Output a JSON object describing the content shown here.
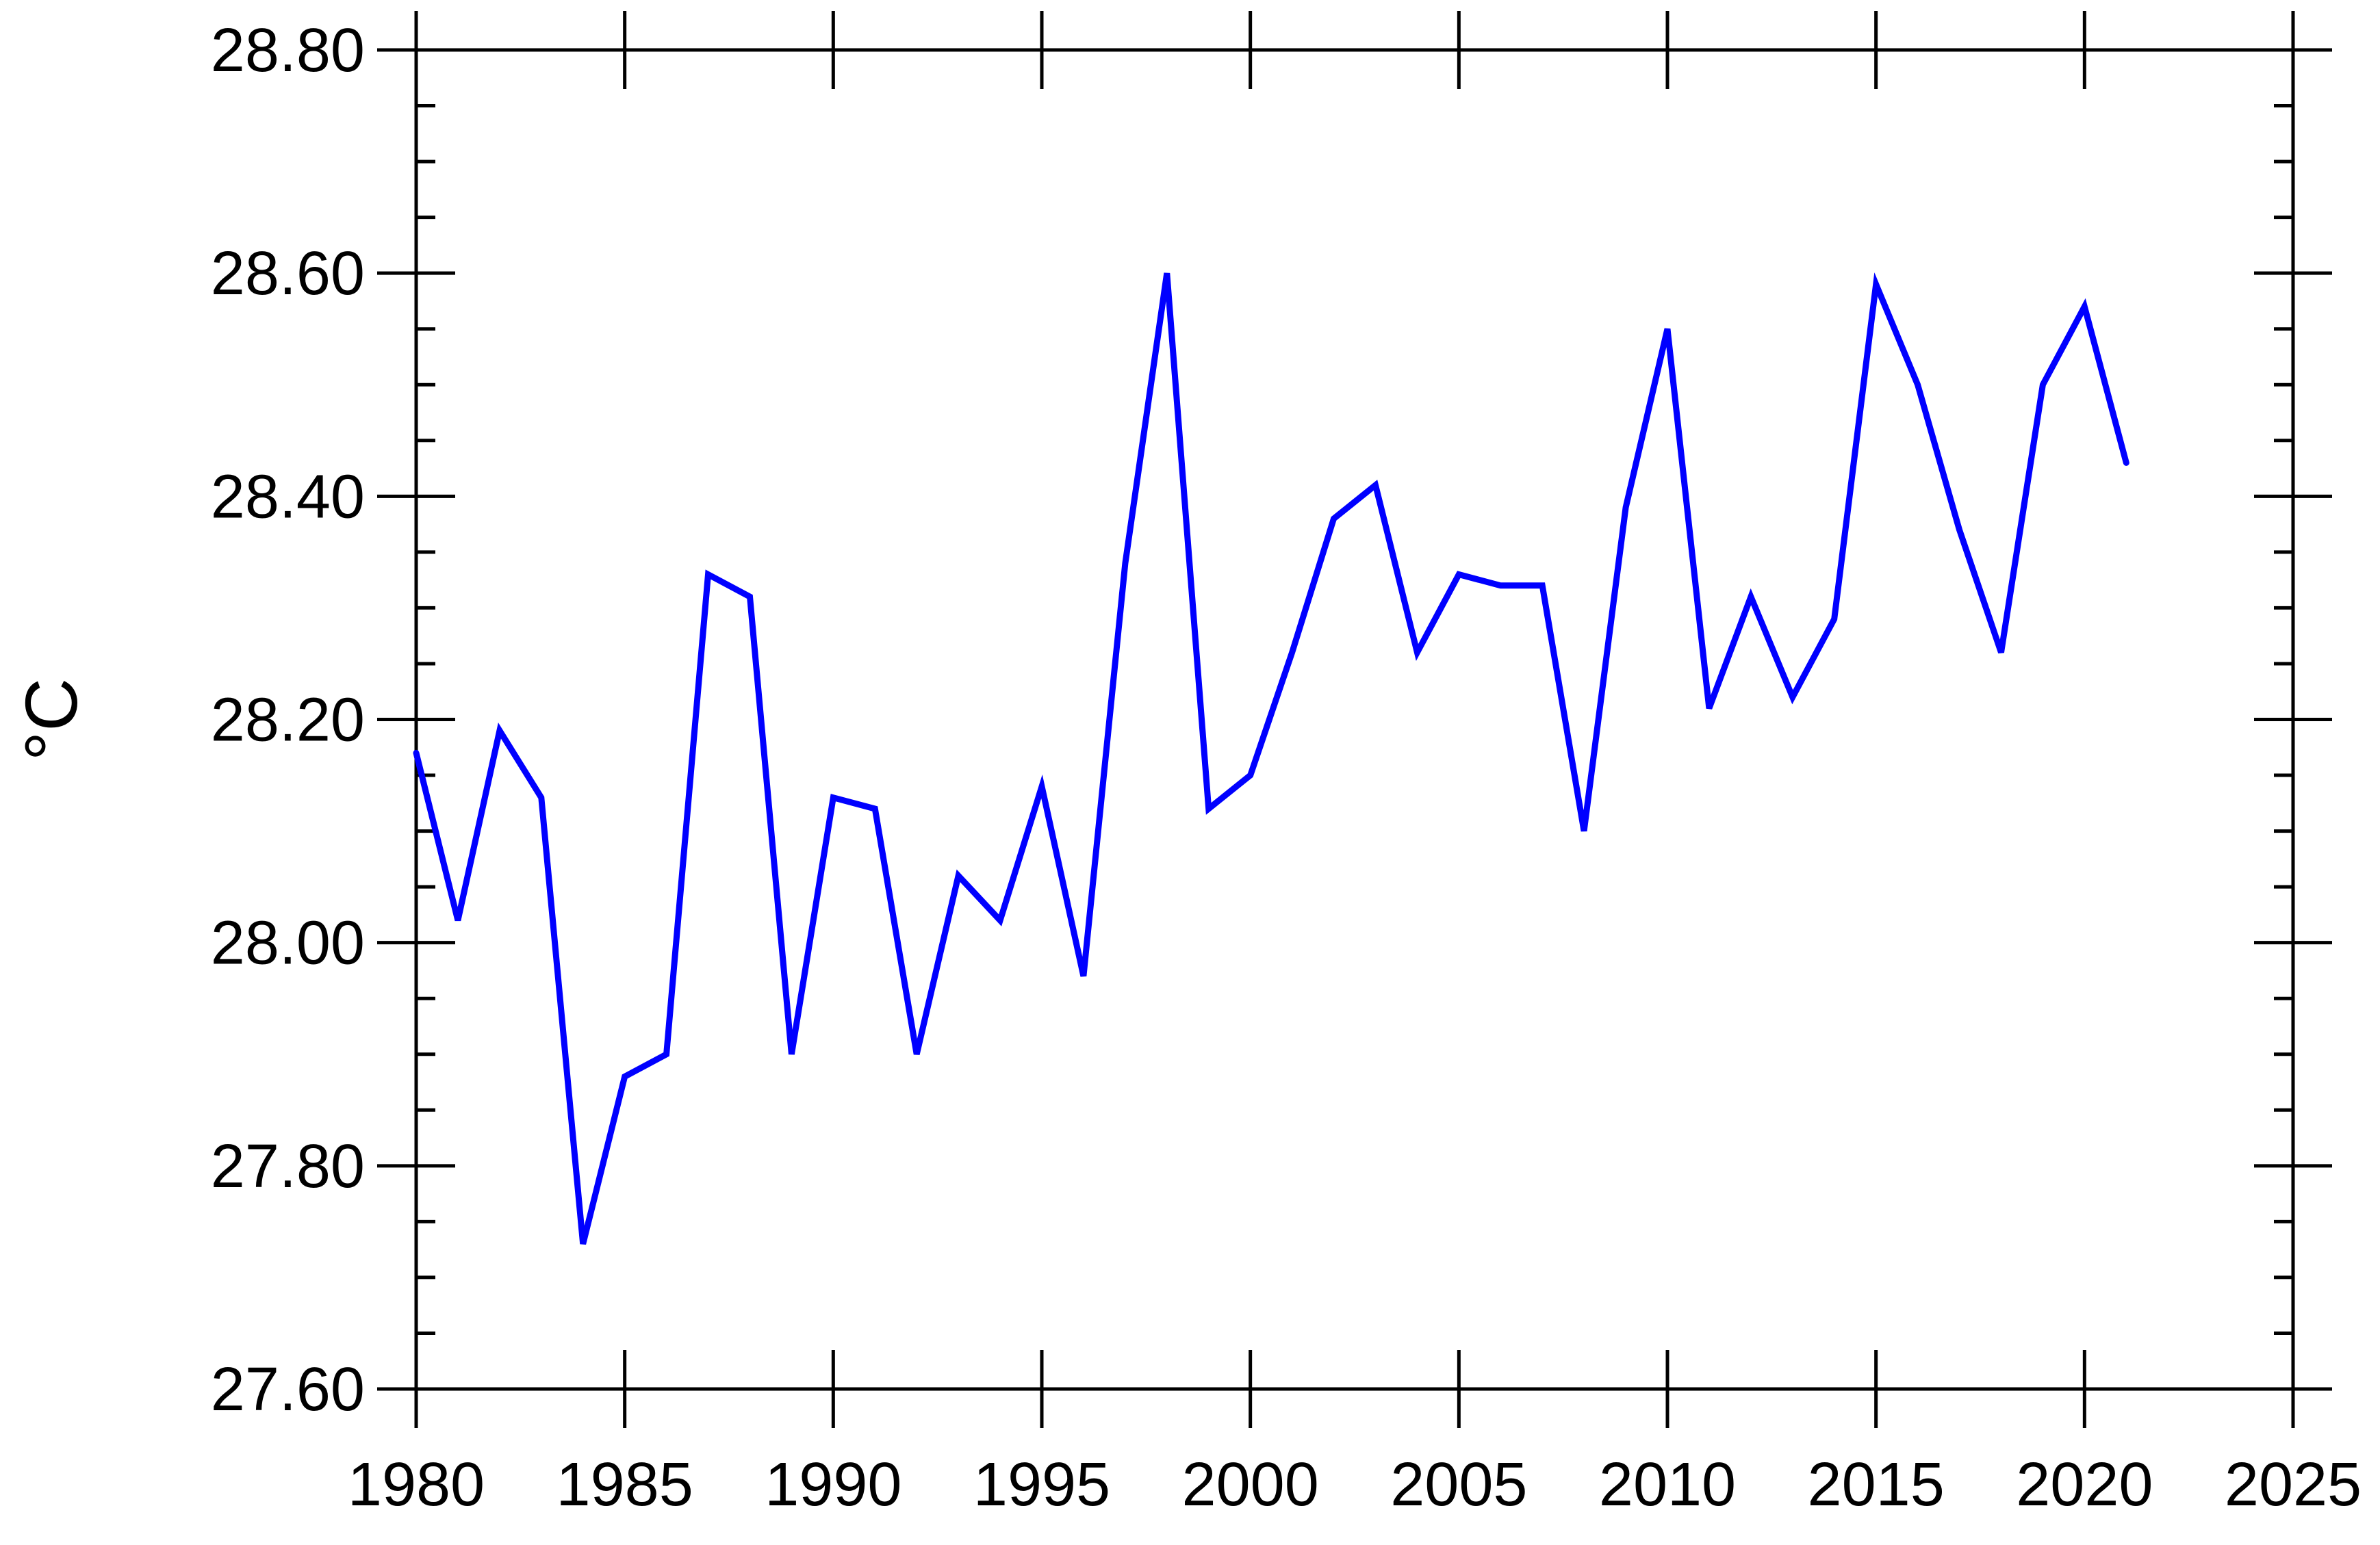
{
  "chart_data": {
    "type": "line",
    "title": "",
    "xlabel": "",
    "ylabel": "°C",
    "xlim": [
      1980,
      2025
    ],
    "ylim": [
      27.6,
      28.8
    ],
    "x_ticks": [
      "1980",
      "1985",
      "1990",
      "1995",
      "2000",
      "2005",
      "2010",
      "2015",
      "2020",
      "2025"
    ],
    "y_ticks": [
      "27.60",
      "27.80",
      "28.00",
      "28.20",
      "28.40",
      "28.60",
      "28.80"
    ],
    "x_minor_step": 1,
    "y_minor_step": 0.05,
    "grid": false,
    "legend": "none",
    "series": [
      {
        "color": "#0000ff",
        "x": [
          1980,
          1981,
          1982,
          1983,
          1984,
          1985,
          1986,
          1987,
          1988,
          1989,
          1990,
          1991,
          1992,
          1993,
          1994,
          1995,
          1996,
          1997,
          1998,
          1999,
          2000,
          2001,
          2002,
          2003,
          2004,
          2005,
          2006,
          2007,
          2008,
          2009,
          2010,
          2011,
          2012,
          2013,
          2014,
          2015,
          2016,
          2017,
          2018,
          2019,
          2020,
          2021
        ],
        "values": [
          28.17,
          28.02,
          28.19,
          28.13,
          27.73,
          27.88,
          27.9,
          28.33,
          28.31,
          27.9,
          28.13,
          28.12,
          27.9,
          28.06,
          28.02,
          28.14,
          27.97,
          28.34,
          28.6,
          28.12,
          28.15,
          28.26,
          28.38,
          28.41,
          28.26,
          28.33,
          28.32,
          28.32,
          28.1,
          28.39,
          28.55,
          28.21,
          28.31,
          28.22,
          28.29,
          28.59,
          28.5,
          28.37,
          28.26,
          28.5,
          28.57,
          28.43
        ]
      }
    ]
  }
}
